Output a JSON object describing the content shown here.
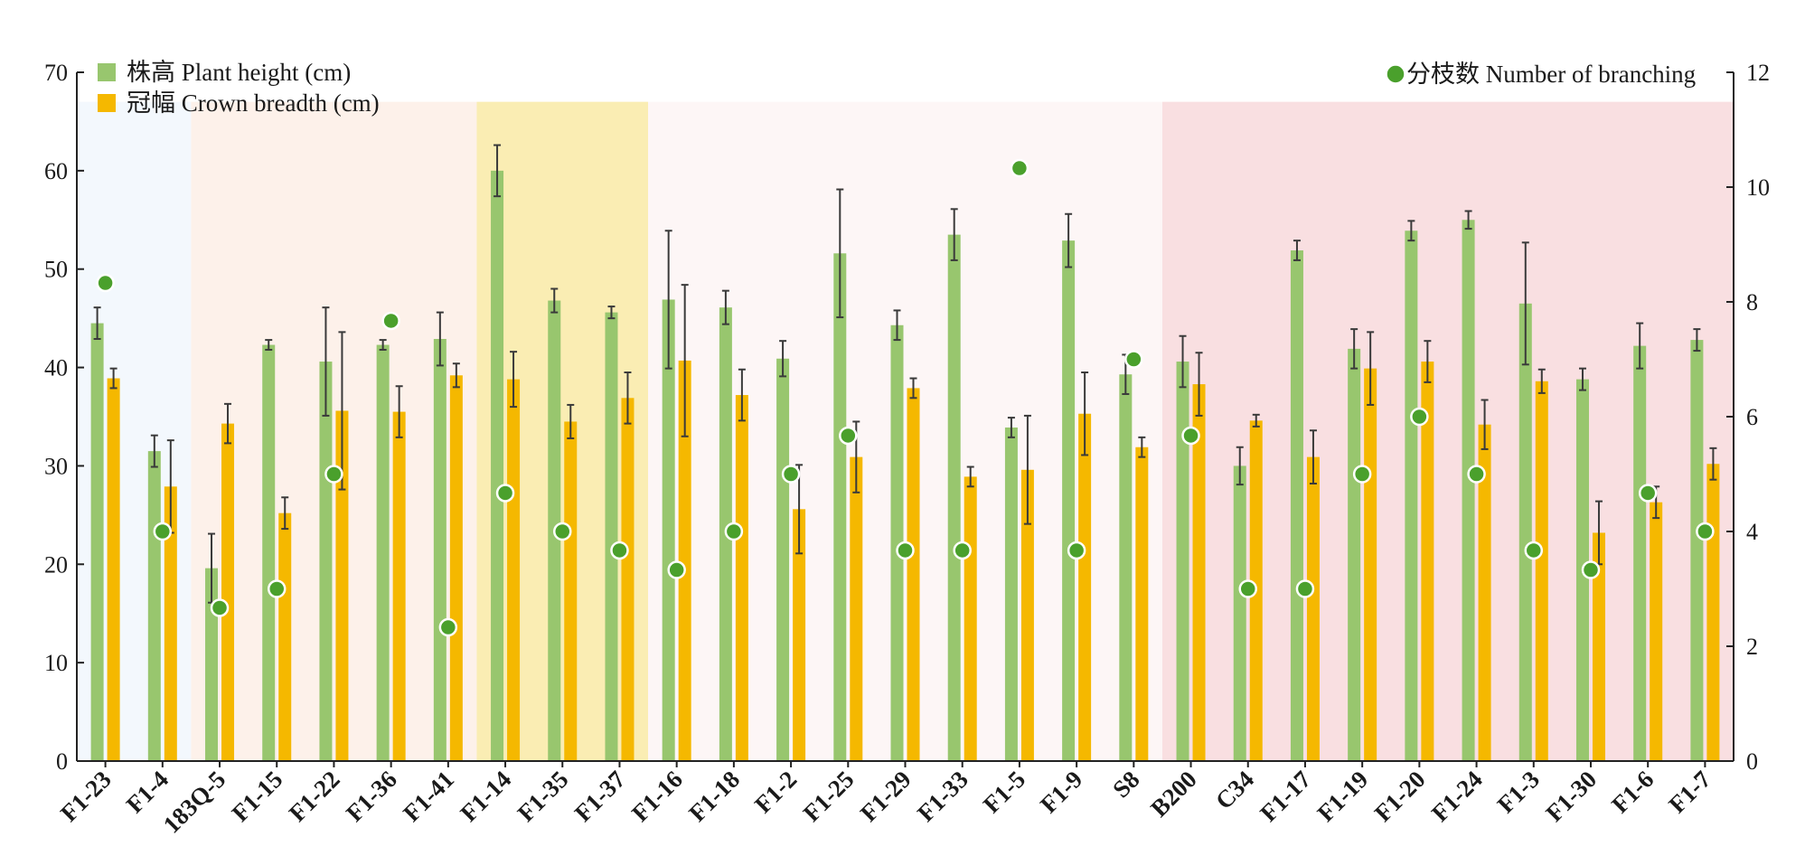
{
  "chart_data": {
    "type": "bar",
    "legend": {
      "left": [
        {
          "key": "height",
          "label": "株高 Plant height (cm)",
          "color": "#98c66e"
        },
        {
          "key": "crown",
          "label": "冠幅 Crown breadth  (cm)",
          "color": "#f5b800"
        }
      ],
      "right": {
        "label": "分枝数 Number of branching",
        "color": "#4aa02c"
      }
    },
    "y_left": {
      "ylim": [
        0,
        70
      ],
      "ticks": [
        "0",
        "10",
        "20",
        "30",
        "40",
        "50",
        "60",
        "70"
      ]
    },
    "y_right": {
      "ylim": [
        0,
        12
      ],
      "ticks": [
        "0",
        "2",
        "4",
        "6",
        "8",
        "10",
        "12"
      ]
    },
    "grid": false,
    "categories": [
      "F1-23",
      "F1-4",
      "183Q-5",
      "F1-15",
      "F1-22",
      "F1-36",
      "F1-41",
      "F1-14",
      "F1-35",
      "F1-37",
      "F1-16",
      "F1-18",
      "F1-2",
      "F1-25",
      "F1-29",
      "F1-33",
      "F1-5",
      "F1-9",
      "S8",
      "B200",
      "C34",
      "F1-17",
      "F1-19",
      "F1-20",
      "F1-24",
      "F1-3",
      "F1-30",
      "F1-6",
      "F1-7"
    ],
    "background_groups": [
      {
        "from": 0,
        "to": 1,
        "color": "#f3f8fd"
      },
      {
        "from": 2,
        "to": 6,
        "color": "#fdf1ea"
      },
      {
        "from": 7,
        "to": 9,
        "color": "#faedb3"
      },
      {
        "from": 10,
        "to": 18,
        "color": "#fdf6f6"
      },
      {
        "from": 19,
        "to": 28,
        "color": "#f9dfe1"
      }
    ],
    "series": [
      {
        "name": "株高 Plant height (cm)",
        "axis": "left",
        "kind": "bar",
        "values": [
          44.5,
          31.5,
          19.6,
          42.3,
          40.6,
          42.3,
          42.9,
          60.0,
          46.8,
          45.6,
          46.9,
          46.1,
          40.9,
          51.6,
          44.3,
          53.5,
          33.9,
          52.9,
          39.3,
          40.6,
          30.0,
          51.9,
          41.9,
          53.9,
          55.0,
          46.5,
          38.8,
          42.2,
          42.8
        ],
        "errors": [
          1.6,
          1.6,
          3.5,
          0.5,
          5.5,
          0.5,
          2.7,
          2.6,
          1.2,
          0.6,
          7.0,
          1.7,
          1.8,
          6.5,
          1.5,
          2.6,
          1.0,
          2.7,
          2.0,
          2.6,
          1.9,
          1.0,
          2.0,
          1.0,
          0.9,
          6.2,
          1.1,
          2.3,
          1.1
        ]
      },
      {
        "name": "冠幅 Crown breadth  (cm)",
        "axis": "left",
        "kind": "bar",
        "values": [
          38.9,
          27.9,
          34.3,
          25.2,
          35.6,
          35.5,
          39.2,
          38.8,
          34.5,
          36.9,
          40.7,
          37.2,
          25.6,
          30.9,
          37.9,
          28.9,
          29.6,
          35.3,
          31.9,
          38.3,
          34.6,
          30.9,
          39.9,
          40.6,
          34.2,
          38.6,
          23.2,
          26.3,
          30.2
        ],
        "errors": [
          1.0,
          4.7,
          2.0,
          1.6,
          8.0,
          2.6,
          1.2,
          2.8,
          1.7,
          2.6,
          7.7,
          2.6,
          4.5,
          3.6,
          1.0,
          1.0,
          5.5,
          4.2,
          1.0,
          3.2,
          0.6,
          2.7,
          3.7,
          2.1,
          2.5,
          1.2,
          3.2,
          1.6,
          1.6
        ]
      },
      {
        "name": "分枝数 Number of branching",
        "axis": "right",
        "kind": "point",
        "values": [
          8.33,
          4.0,
          2.67,
          3.0,
          5.0,
          7.67,
          2.33,
          4.67,
          4.0,
          3.67,
          3.33,
          4.0,
          5.0,
          5.67,
          3.67,
          3.67,
          10.33,
          3.67,
          7.0,
          5.67,
          3.0,
          3.0,
          5.0,
          6.0,
          5.0,
          3.67,
          3.33,
          4.67,
          4.0
        ]
      }
    ]
  }
}
